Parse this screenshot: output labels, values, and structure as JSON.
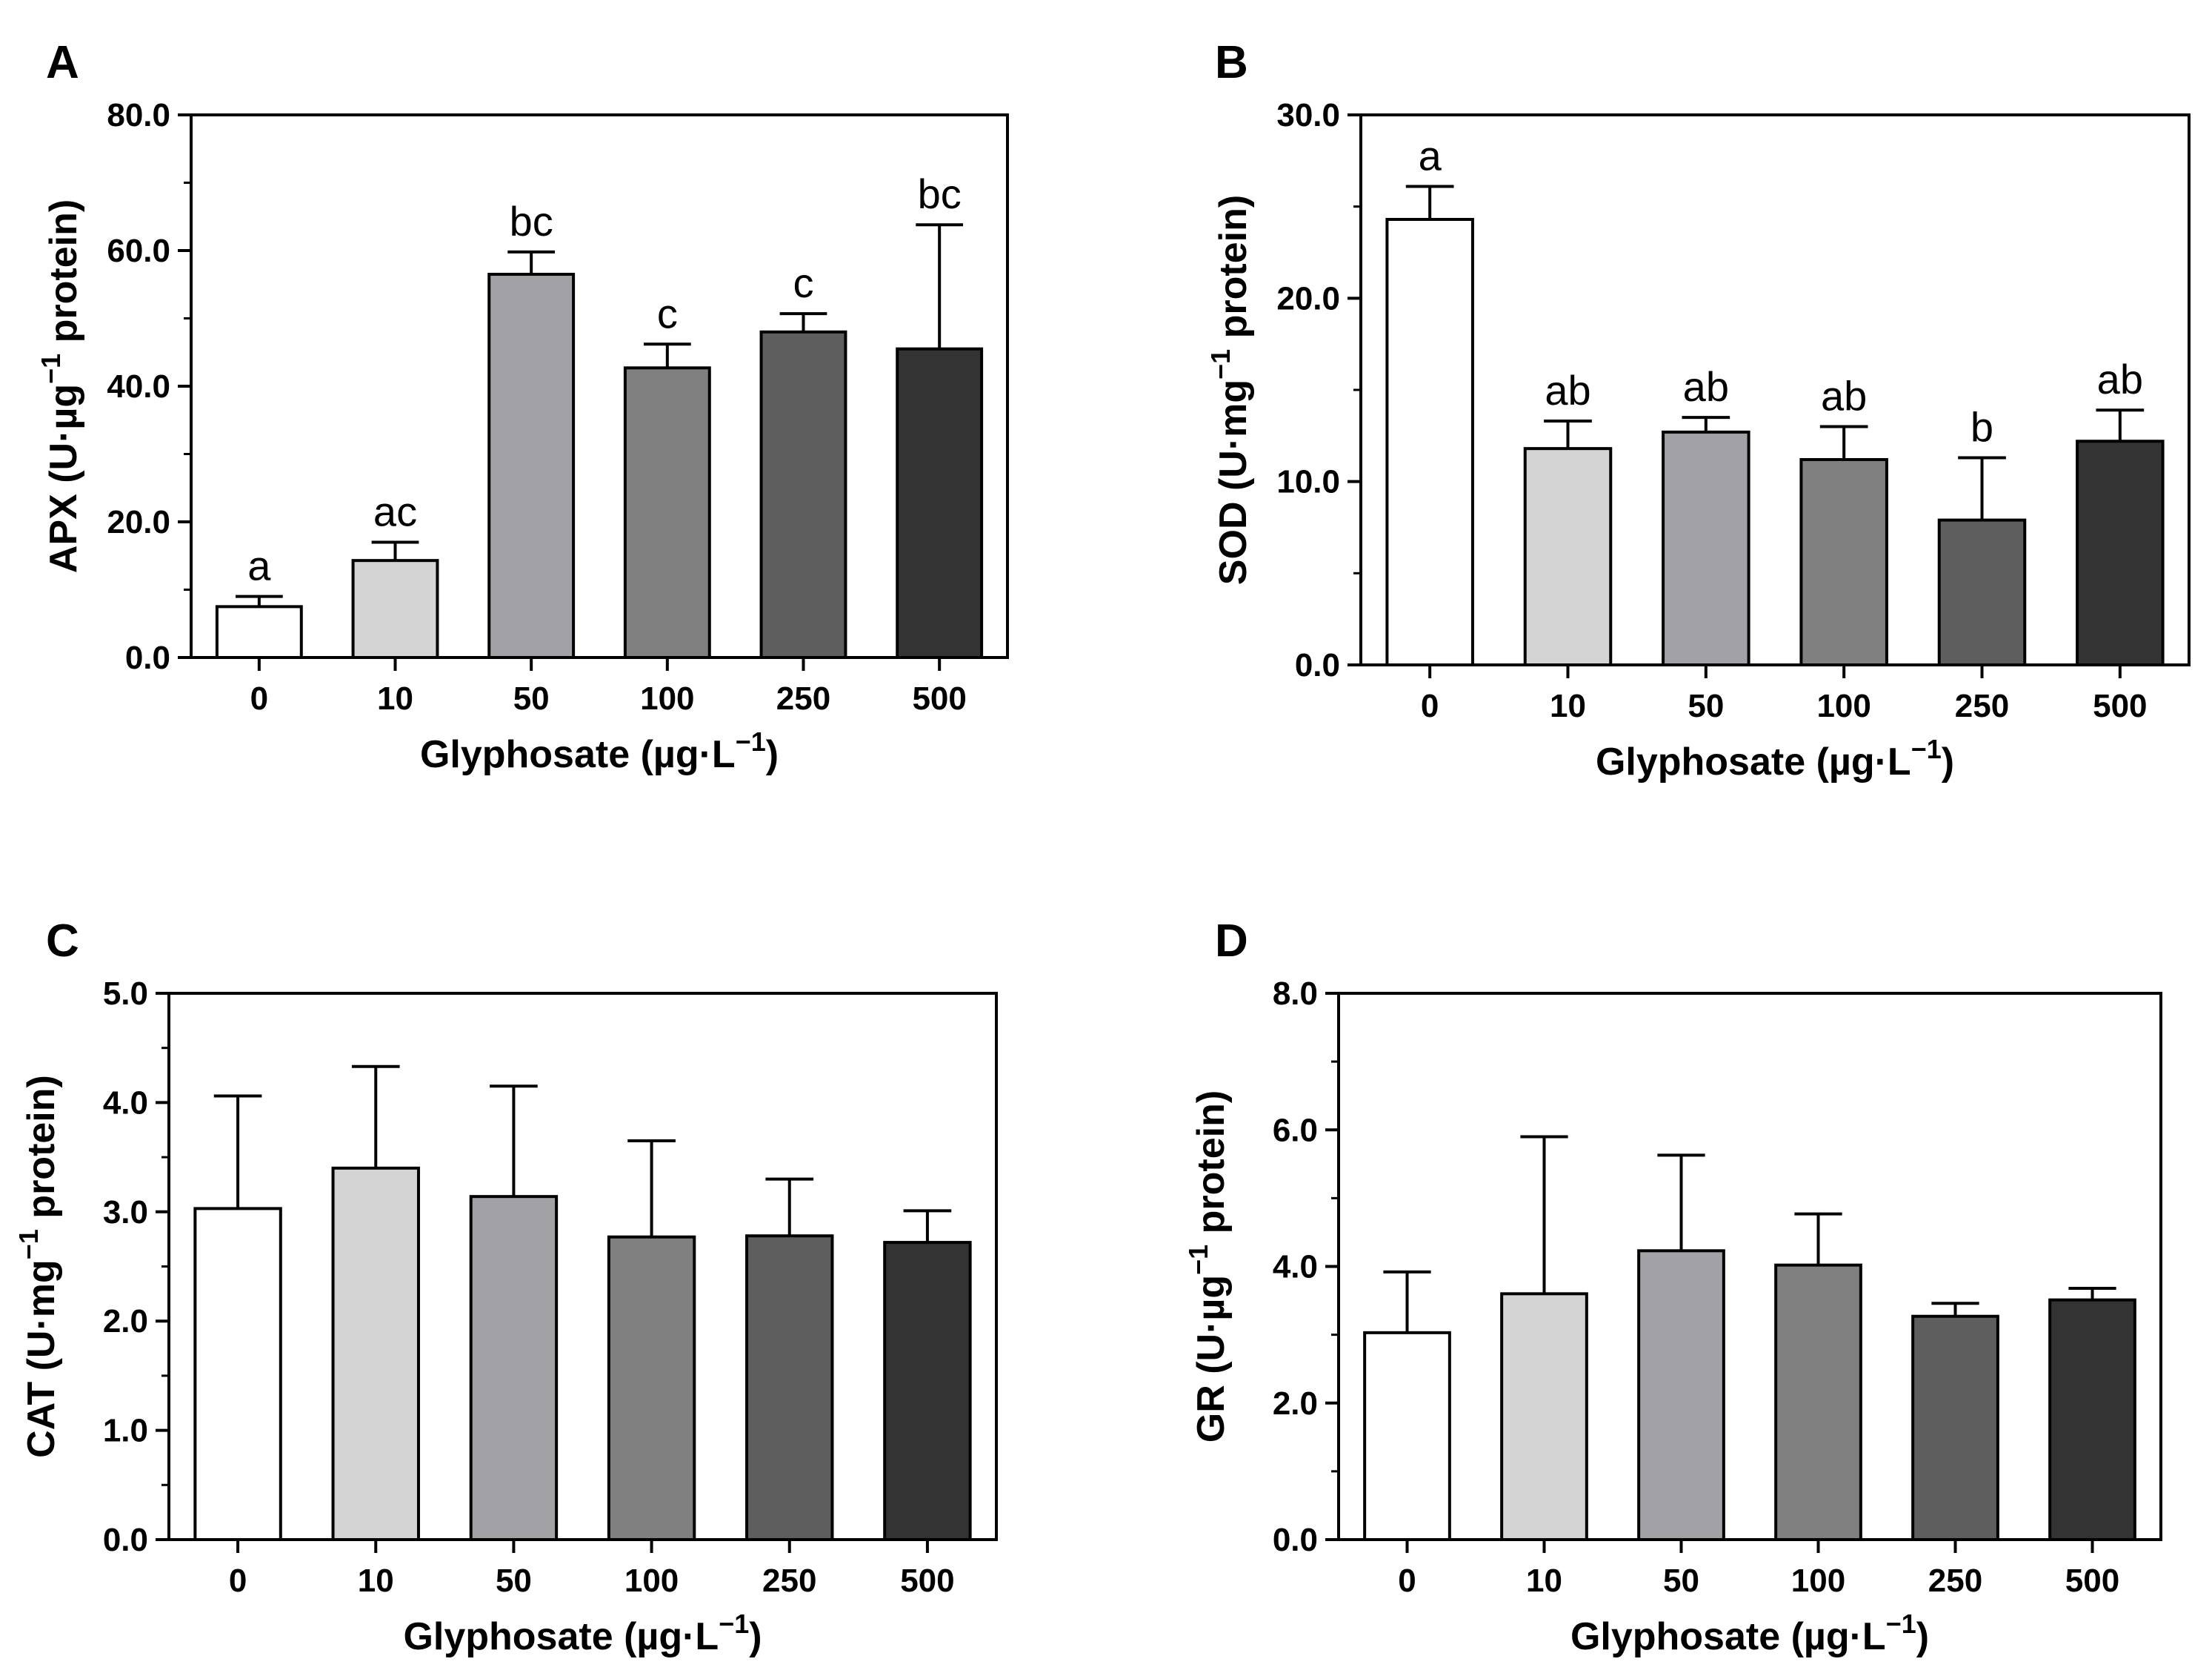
{
  "bar_colors": [
    "#ffffff",
    "#d4d4d4",
    "#a2a2a6",
    "#808080",
    "#5e5e5e",
    "#333333"
  ],
  "chart_data": [
    {
      "panel": "A",
      "type": "bar",
      "categories": [
        "0",
        "10",
        "50",
        "100",
        "250",
        "500"
      ],
      "values": [
        7.5,
        14.3,
        56.5,
        42.7,
        48.0,
        45.5
      ],
      "errors": [
        1.5,
        2.7,
        3.3,
        3.5,
        2.7,
        18.3
      ],
      "sig_labels": [
        "a",
        "ac",
        "bc",
        "c",
        "c",
        "bc"
      ],
      "ylim": [
        0,
        80
      ],
      "yticks": [
        "0.0",
        "20.0",
        "40.0",
        "60.0",
        "80.0"
      ],
      "ylabel": {
        "main": "APX (U·µg",
        "sup": "−1",
        "tail": " protein)"
      },
      "xlabel": {
        "main": "Glyphosate (µg·L",
        "sup": "−1",
        "tail": ")"
      }
    },
    {
      "panel": "B",
      "type": "bar",
      "categories": [
        "0",
        "10",
        "50",
        "100",
        "250",
        "500"
      ],
      "values": [
        24.3,
        11.8,
        12.7,
        11.2,
        7.9,
        12.2
      ],
      "errors": [
        1.8,
        1.5,
        0.8,
        1.8,
        3.4,
        1.7
      ],
      "sig_labels": [
        "a",
        "ab",
        "ab",
        "ab",
        "b",
        "ab"
      ],
      "ylim": [
        0,
        30
      ],
      "yticks": [
        "0.0",
        "10.0",
        "20.0",
        "30.0"
      ],
      "ylabel": {
        "main": "SOD (U·mg",
        "sup": "−1",
        "tail": " protein)"
      },
      "xlabel": {
        "main": "Glyphosate (µg·L",
        "sup": "−1",
        "tail": ")"
      }
    },
    {
      "panel": "C",
      "type": "bar",
      "categories": [
        "0",
        "10",
        "50",
        "100",
        "250",
        "500"
      ],
      "values": [
        3.03,
        3.4,
        3.14,
        2.77,
        2.78,
        2.72
      ],
      "errors": [
        1.03,
        0.93,
        1.01,
        0.88,
        0.52,
        0.29
      ],
      "sig_labels": [],
      "ylim": [
        0,
        5
      ],
      "yticks": [
        "0.0",
        "1.0",
        "2.0",
        "3.0",
        "4.0",
        "5.0"
      ],
      "ylabel": {
        "main": "CAT (U·mg",
        "sup": "−1",
        "tail": " protein)"
      },
      "xlabel": {
        "main": "Glyphosate (µg·L",
        "sup": "−1",
        "tail": ")"
      }
    },
    {
      "panel": "D",
      "type": "bar",
      "categories": [
        "0",
        "10",
        "50",
        "100",
        "250",
        "500"
      ],
      "values": [
        3.03,
        3.6,
        4.23,
        4.02,
        3.27,
        3.51
      ],
      "errors": [
        0.89,
        2.3,
        1.4,
        0.75,
        0.19,
        0.17
      ],
      "sig_labels": [],
      "ylim": [
        0,
        8
      ],
      "yticks": [
        "0.0",
        "2.0",
        "4.0",
        "6.0",
        "8.0"
      ],
      "ylabel": {
        "main": "GR (U·µg",
        "sup": "−1",
        "tail": " protein)"
      },
      "xlabel": {
        "main": "Glyphosate (µg·L",
        "sup": "−1",
        "tail": ")"
      }
    }
  ]
}
